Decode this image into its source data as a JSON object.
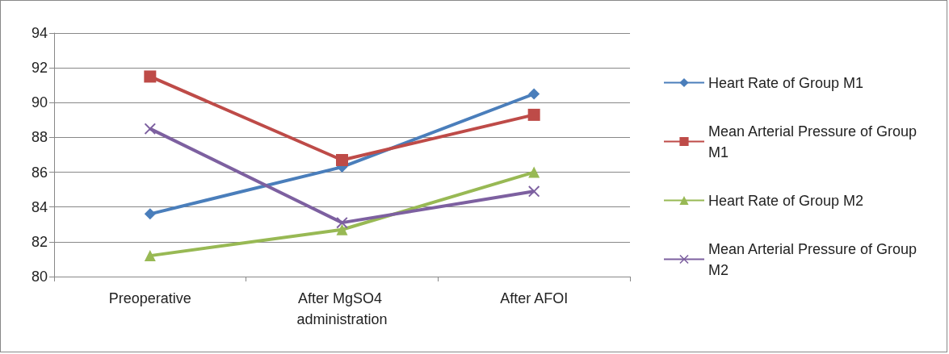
{
  "chart_data": {
    "type": "line",
    "categories": [
      "Preoperative",
      "After MgSO4 administration",
      "After AFOI"
    ],
    "series": [
      {
        "name": "Heart Rate of Group M1",
        "color": "#4a7ebb",
        "marker": "diamond",
        "values": [
          83.6,
          86.3,
          90.5
        ]
      },
      {
        "name": "Mean Arterial Pressure of Group M1",
        "color": "#be4b48",
        "marker": "square",
        "values": [
          91.5,
          86.7,
          89.3
        ]
      },
      {
        "name": "Heart Rate of Group M2",
        "color": "#98b954",
        "marker": "triangle",
        "values": [
          81.2,
          82.7,
          86.0
        ]
      },
      {
        "name": "Mean Arterial Pressure of Group M2",
        "color": "#7d60a0",
        "marker": "cross",
        "values": [
          88.5,
          83.1,
          84.9
        ]
      }
    ],
    "ylim": [
      80,
      94
    ],
    "yticks": [
      80,
      82,
      84,
      86,
      88,
      90,
      92,
      94
    ],
    "grid": "y",
    "legend": "right",
    "line_style": "solid"
  }
}
